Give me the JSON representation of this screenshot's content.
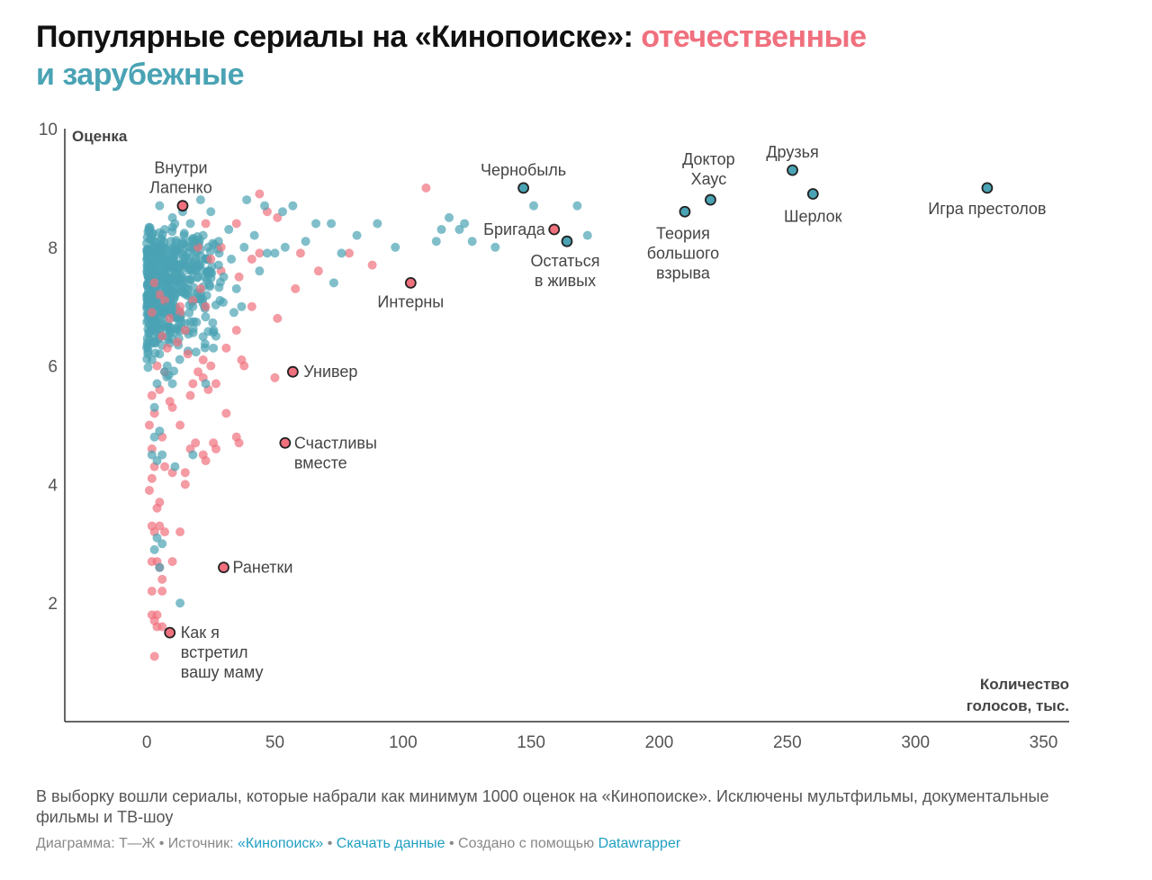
{
  "title": {
    "main": "Популярные сериалы на «Кинопоиске»: ",
    "domestic": "отечественные",
    "foreign": "и зарубежные"
  },
  "colors": {
    "domestic": "#f0707e",
    "foreign": "#4aa3b4",
    "axis": "#333333",
    "highlight_stroke": "#222222"
  },
  "chart_data": {
    "type": "scatter",
    "xlabel": "Количество голосов, тыс.",
    "ylabel": "Оценка",
    "xlim": [
      -32,
      360
    ],
    "ylim": [
      0,
      10
    ],
    "x_ticks": [
      "0",
      "50",
      "100",
      "150",
      "200",
      "250",
      "300",
      "350"
    ],
    "x_tick_values": [
      0,
      50,
      100,
      150,
      200,
      250,
      300,
      350
    ],
    "y_ticks": [
      "2",
      "4",
      "6",
      "8",
      "10"
    ],
    "y_tick_values": [
      2,
      4,
      6,
      8,
      10
    ],
    "grid": false,
    "legend": "none (series named in title)",
    "series": [
      {
        "name": "отечественные",
        "points": [
          [
            29,
            8.0
          ],
          [
            44,
            8.9
          ],
          [
            88,
            7.7
          ],
          [
            109,
            9.0
          ],
          [
            60,
            7.9
          ],
          [
            67,
            7.6
          ],
          [
            79,
            7.9
          ],
          [
            58,
            7.3
          ],
          [
            51,
            8.5
          ],
          [
            47,
            8.6
          ],
          [
            44,
            7.9
          ],
          [
            41,
            7.8
          ],
          [
            23,
            8.4
          ],
          [
            35,
            8.4
          ],
          [
            20,
            8.0
          ],
          [
            25,
            7.8
          ],
          [
            36,
            7.5
          ],
          [
            41,
            7.0
          ],
          [
            51,
            6.8
          ],
          [
            29,
            7.6
          ],
          [
            21,
            7.3
          ],
          [
            18,
            7.1
          ],
          [
            23,
            7.0
          ],
          [
            13,
            7.0
          ],
          [
            15,
            6.6
          ],
          [
            12,
            6.4
          ],
          [
            13,
            6.9
          ],
          [
            16,
            6.2
          ],
          [
            22,
            6.1
          ],
          [
            25,
            6.0
          ],
          [
            31,
            6.3
          ],
          [
            35,
            6.6
          ],
          [
            37,
            6.1
          ],
          [
            38,
            6.0
          ],
          [
            50,
            5.8
          ],
          [
            18,
            5.7
          ],
          [
            20,
            5.9
          ],
          [
            22,
            5.8
          ],
          [
            24,
            5.6
          ],
          [
            27,
            5.7
          ],
          [
            31,
            5.2
          ],
          [
            35,
            4.8
          ],
          [
            36,
            4.7
          ],
          [
            17,
            5.5
          ],
          [
            13,
            5.0
          ],
          [
            9,
            5.4
          ],
          [
            10,
            5.3
          ],
          [
            19,
            4.7
          ],
          [
            17,
            4.6
          ],
          [
            22,
            4.5
          ],
          [
            26,
            4.7
          ],
          [
            27,
            4.6
          ],
          [
            23,
            4.4
          ],
          [
            15,
            4.2
          ],
          [
            15,
            4.0
          ],
          [
            10,
            4.2
          ],
          [
            4,
            3.6
          ],
          [
            5,
            3.3
          ],
          [
            7,
            3.2
          ],
          [
            2,
            3.3
          ],
          [
            3,
            3.2
          ],
          [
            13,
            3.2
          ],
          [
            2,
            2.7
          ],
          [
            4,
            2.7
          ],
          [
            5,
            2.6
          ],
          [
            10,
            2.7
          ],
          [
            6,
            2.4
          ],
          [
            2,
            2.2
          ],
          [
            6,
            2.2
          ],
          [
            2,
            1.8
          ],
          [
            3,
            1.7
          ],
          [
            4,
            1.8
          ],
          [
            4,
            1.6
          ],
          [
            6,
            1.6
          ],
          [
            3,
            1.1
          ],
          [
            1,
            3.9
          ],
          [
            2,
            4.1
          ],
          [
            3,
            4.3
          ],
          [
            5,
            3.7
          ],
          [
            2,
            4.6
          ],
          [
            6,
            4.8
          ],
          [
            7,
            4.3
          ],
          [
            1,
            5.0
          ],
          [
            3,
            5.2
          ],
          [
            5,
            5.6
          ],
          [
            7,
            5.9
          ],
          [
            8,
            6.3
          ],
          [
            9,
            6.8
          ],
          [
            2,
            5.5
          ],
          [
            4,
            6.0
          ],
          [
            6,
            6.5
          ],
          [
            2,
            6.9
          ],
          [
            5,
            7.2
          ],
          [
            3,
            7.4
          ],
          [
            7,
            7.1
          ]
        ]
      },
      {
        "name": "зарубежные",
        "points": [
          [
            151,
            8.7
          ],
          [
            168,
            8.7
          ],
          [
            172,
            8.2
          ],
          [
            136,
            8.0
          ],
          [
            127,
            8.1
          ],
          [
            124,
            8.4
          ],
          [
            118,
            8.5
          ],
          [
            122,
            8.3
          ],
          [
            113,
            8.1
          ],
          [
            115,
            8.3
          ],
          [
            97,
            8.0
          ],
          [
            90,
            8.4
          ],
          [
            82,
            8.2
          ],
          [
            73,
            7.4
          ],
          [
            76,
            7.9
          ],
          [
            72,
            8.4
          ],
          [
            66,
            8.4
          ],
          [
            62,
            8.1
          ],
          [
            57,
            8.7
          ],
          [
            53,
            8.6
          ],
          [
            50,
            7.9
          ],
          [
            47,
            7.9
          ],
          [
            46,
            8.7
          ],
          [
            39,
            8.8
          ],
          [
            32,
            8.3
          ],
          [
            28,
            8.1
          ],
          [
            25,
            8.6
          ],
          [
            21,
            8.8
          ],
          [
            22,
            8.2
          ],
          [
            37,
            7.0
          ],
          [
            34,
            6.9
          ],
          [
            27,
            6.5
          ],
          [
            26,
            6.3
          ],
          [
            23,
            5.7
          ],
          [
            18,
            4.5
          ],
          [
            11,
            4.3
          ],
          [
            13,
            2.0
          ],
          [
            4,
            3.1
          ],
          [
            5,
            2.6
          ],
          [
            6,
            3.0
          ],
          [
            3,
            2.9
          ],
          [
            10,
            5.7
          ],
          [
            7,
            5.9
          ],
          [
            8,
            6.0
          ],
          [
            6,
            4.5
          ],
          [
            4,
            4.4
          ],
          [
            2,
            4.5
          ],
          [
            3,
            4.8
          ],
          [
            5,
            4.9
          ],
          [
            3,
            5.3
          ],
          [
            4,
            5.7
          ],
          [
            2,
            6.1
          ],
          [
            5,
            6.2
          ],
          [
            9,
            6.6
          ],
          [
            12,
            6.8
          ],
          [
            18,
            7.0
          ],
          [
            15,
            7.3
          ],
          [
            20,
            7.5
          ],
          [
            24,
            7.6
          ],
          [
            28,
            7.7
          ],
          [
            33,
            7.8
          ],
          [
            38,
            8.0
          ],
          [
            42,
            8.2
          ],
          [
            10,
            8.5
          ],
          [
            14,
            8.6
          ],
          [
            17,
            8.4
          ],
          [
            19,
            8.1
          ],
          [
            7,
            8.3
          ],
          [
            5,
            8.7
          ],
          [
            3,
            8.1
          ],
          [
            4,
            7.6
          ],
          [
            6,
            7.4
          ],
          [
            8,
            7.8
          ],
          [
            11,
            7.9
          ],
          [
            13,
            7.7
          ],
          [
            16,
            7.9
          ],
          [
            2,
            7.2
          ],
          [
            1,
            6.7
          ],
          [
            8,
            7.0
          ],
          [
            11,
            7.2
          ],
          [
            24,
            8.0
          ],
          [
            30,
            7.5
          ],
          [
            35,
            7.3
          ],
          [
            44,
            7.6
          ],
          [
            54,
            8.0
          ]
        ]
      }
    ],
    "highlighted": [
      {
        "label": "Внутри\nЛапенко",
        "x": 14,
        "y": 8.7,
        "group": "domestic"
      },
      {
        "label": "Интерны",
        "x": 103,
        "y": 7.4,
        "group": "domestic"
      },
      {
        "label": "Универ",
        "x": 57,
        "y": 5.9,
        "group": "domestic"
      },
      {
        "label": "Счастливы\nвместе",
        "x": 54,
        "y": 4.7,
        "group": "domestic"
      },
      {
        "label": "Ранетки",
        "x": 30,
        "y": 2.6,
        "group": "domestic"
      },
      {
        "label": "Как я\nвстретил\nвашу маму",
        "x": 9,
        "y": 1.5,
        "group": "domestic"
      },
      {
        "label": "Бригада",
        "x": 159,
        "y": 8.3,
        "group": "domestic"
      },
      {
        "label": "Чернобыль",
        "x": 147,
        "y": 9.0,
        "group": "foreign"
      },
      {
        "label": "Остаться\nв живых",
        "x": 164,
        "y": 8.1,
        "group": "foreign"
      },
      {
        "label": "Теория\nбольшого\nвзрыва",
        "x": 210,
        "y": 8.6,
        "group": "foreign"
      },
      {
        "label": "Доктор\nХаус",
        "x": 220,
        "y": 8.8,
        "group": "foreign"
      },
      {
        "label": "Друзья",
        "x": 252,
        "y": 9.3,
        "group": "foreign"
      },
      {
        "label": "Шерлок",
        "x": 260,
        "y": 8.9,
        "group": "foreign"
      },
      {
        "label": "Игра престолов",
        "x": 328,
        "y": 9.0,
        "group": "foreign"
      }
    ]
  },
  "notes": "В выборку вошли сериалы, которые набрали как минимум 1000 оценок на «Кинопоиске». Исключены мультфильмы, документальные фильмы и ТВ-шоу",
  "footer": {
    "chart_by": "Диаграмма: Т—Ж",
    "source_prefix": "Источник: ",
    "source_link": "«Кинопоиск»",
    "download_link": "Скачать данные",
    "created_prefix": "Создано с помощью ",
    "created_link": "Datawrapper",
    "separator": " • "
  }
}
